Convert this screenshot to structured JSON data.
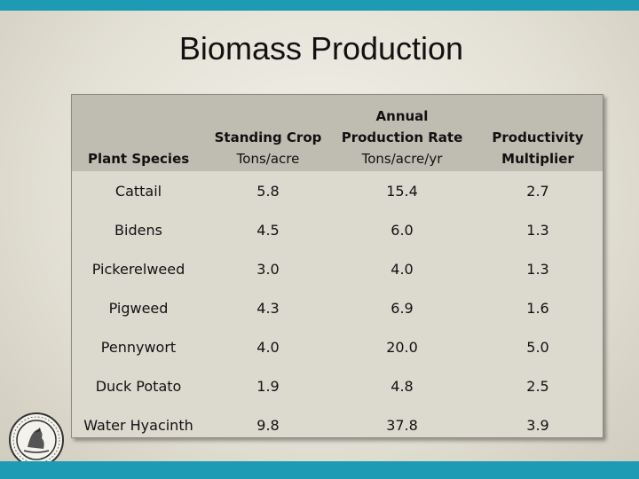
{
  "title": "Biomass Production",
  "table": {
    "headers": [
      {
        "main": "Plant Species",
        "sub": ""
      },
      {
        "main": "Standing Crop",
        "sub": "Tons/acre"
      },
      {
        "main": "Annual Production Rate",
        "sub": "Tons/acre/yr"
      },
      {
        "main": "Productivity Multiplier",
        "sub": ""
      }
    ],
    "rows": [
      [
        "Cattail",
        "5.8",
        "15.4",
        "2.7"
      ],
      [
        "Bidens",
        "4.5",
        "6.0",
        "1.3"
      ],
      [
        "Pickerelweed",
        "3.0",
        "4.0",
        "1.3"
      ],
      [
        "Pigweed",
        "4.3",
        "6.9",
        "1.6"
      ],
      [
        "Pennywort",
        "4.0",
        "20.0",
        "5.0"
      ],
      [
        "Duck Potato",
        "1.9",
        "4.8",
        "2.5"
      ],
      [
        "Water Hyacinth",
        "9.8",
        "37.8",
        "3.9"
      ]
    ]
  },
  "colors": {
    "accent_bar": "#1d9bb5",
    "header_bg": "#bfbcb2",
    "table_bg": "#dcd9cf"
  },
  "seal": {
    "icon": "agency-seal-icon"
  }
}
